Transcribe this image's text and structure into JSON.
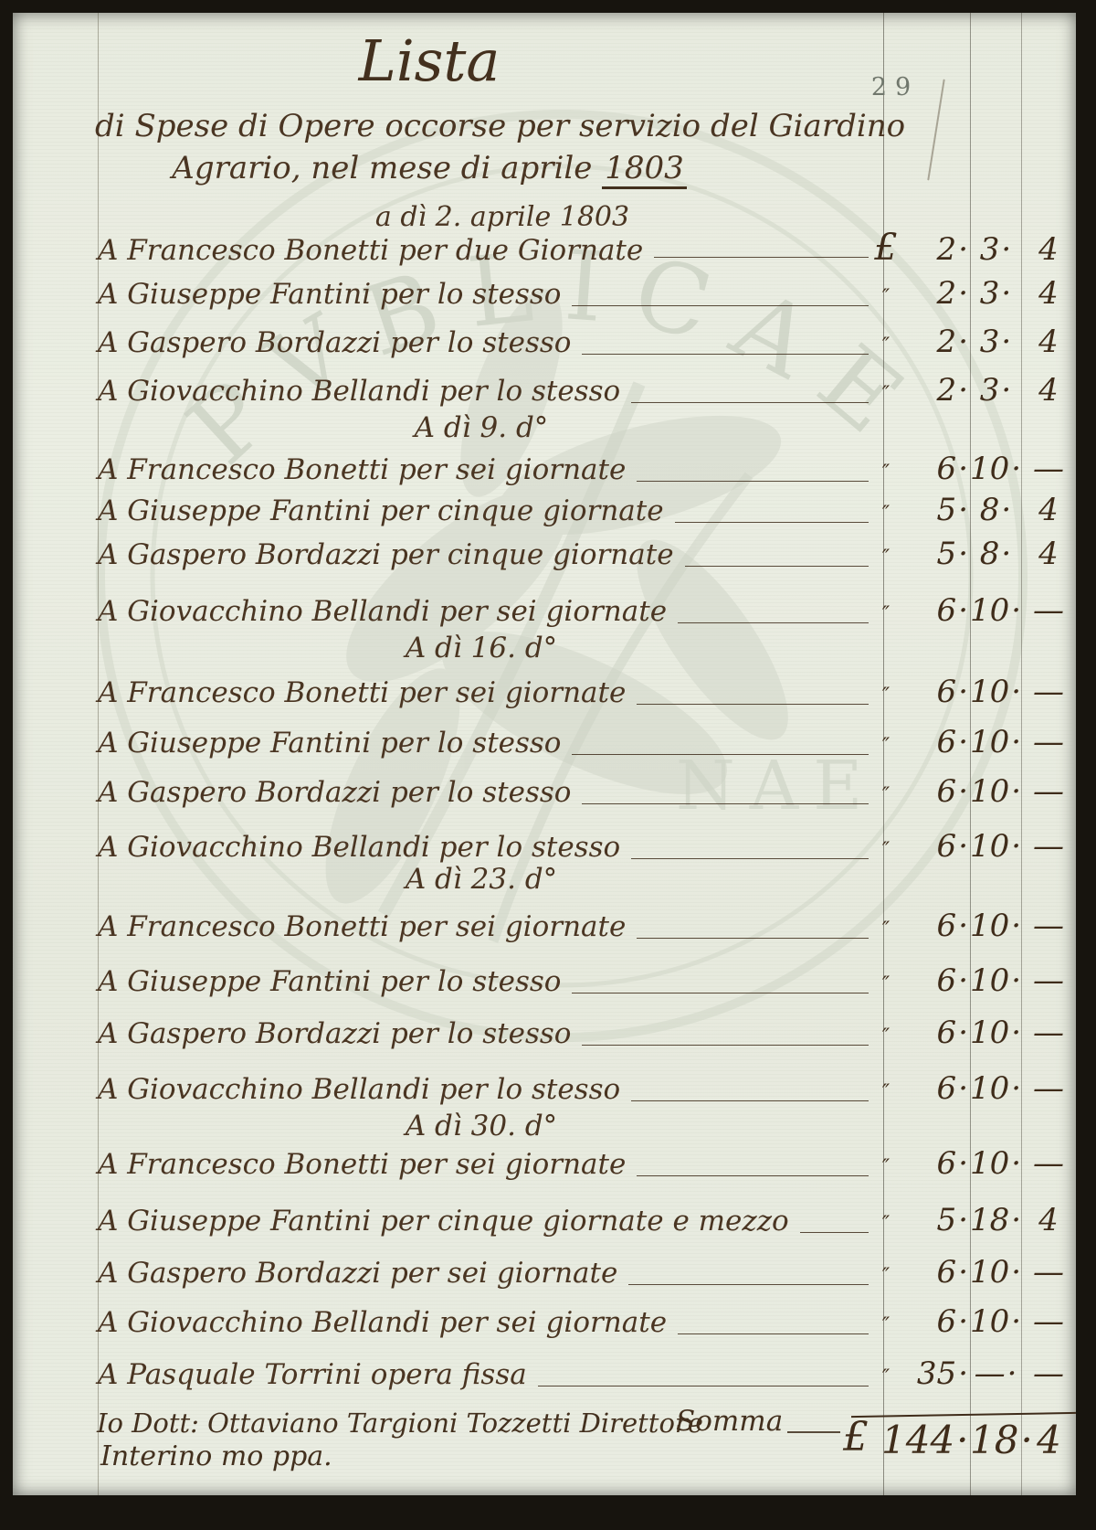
{
  "document": {
    "page_number": "29",
    "title": "Lista",
    "subtitle_line1": "di Spese di Opere occorse per servizio del Giardino",
    "subtitle_line2_pre": "Agrario, nel mese di aprile ",
    "subtitle_line2_year": "1803",
    "date_heading": "a dì 2. aprile 1803",
    "currency_symbol": "£"
  },
  "sections": [
    {
      "heading": "",
      "entries": [
        {
          "text": "A Francesco Bonetti per due Giornate",
          "mark": "£",
          "lire": "2",
          "soldi": "3",
          "denari": "4"
        },
        {
          "text": "A Giuseppe Fantini per lo stesso",
          "mark": "″",
          "lire": "2",
          "soldi": "3",
          "denari": "4"
        },
        {
          "text": "A Gaspero Bordazzi per lo stesso",
          "mark": "″",
          "lire": "2",
          "soldi": "3",
          "denari": "4"
        },
        {
          "text": "A Giovacchino Bellandi per lo stesso",
          "mark": "″",
          "lire": "2",
          "soldi": "3",
          "denari": "4"
        }
      ]
    },
    {
      "heading": "A dì 9. d°",
      "entries": [
        {
          "text": "A Francesco Bonetti per sei giornate",
          "mark": "″",
          "lire": "6",
          "soldi": "10",
          "denari": "—"
        },
        {
          "text": "A Giuseppe Fantini per cinque giornate",
          "mark": "″",
          "lire": "5",
          "soldi": "8",
          "denari": "4"
        },
        {
          "text": "A Gaspero Bordazzi per cinque giornate",
          "mark": "″",
          "lire": "5",
          "soldi": "8",
          "denari": "4"
        },
        {
          "text": "A Giovacchino Bellandi per sei giornate",
          "mark": "″",
          "lire": "6",
          "soldi": "10",
          "denari": "—"
        }
      ]
    },
    {
      "heading": "A dì 16. d°",
      "entries": [
        {
          "text": "A Francesco Bonetti per sei giornate",
          "mark": "″",
          "lire": "6",
          "soldi": "10",
          "denari": "—"
        },
        {
          "text": "A Giuseppe Fantini per lo stesso",
          "mark": "″",
          "lire": "6",
          "soldi": "10",
          "denari": "—"
        },
        {
          "text": "A Gaspero Bordazzi per lo stesso",
          "mark": "″",
          "lire": "6",
          "soldi": "10",
          "denari": "—"
        },
        {
          "text": "A Giovacchino Bellandi per lo stesso",
          "mark": "″",
          "lire": "6",
          "soldi": "10",
          "denari": "—"
        }
      ]
    },
    {
      "heading": "A dì 23. d°",
      "entries": [
        {
          "text": "A Francesco Bonetti per sei giornate",
          "mark": "″",
          "lire": "6",
          "soldi": "10",
          "denari": "—"
        },
        {
          "text": "A Giuseppe Fantini per lo stesso",
          "mark": "″",
          "lire": "6",
          "soldi": "10",
          "denari": "—"
        },
        {
          "text": "A Gaspero Bordazzi per lo stesso",
          "mark": "″",
          "lire": "6",
          "soldi": "10",
          "denari": "—"
        },
        {
          "text": "A Giovacchino Bellandi per lo stesso",
          "mark": "″",
          "lire": "6",
          "soldi": "10",
          "denari": "—"
        }
      ]
    },
    {
      "heading": "A dì 30. d°",
      "entries": [
        {
          "text": "A Francesco Bonetti per sei giornate",
          "mark": "″",
          "lire": "6",
          "soldi": "10",
          "denari": "—"
        },
        {
          "text": "A Giuseppe Fantini per cinque giornate e mezzo",
          "mark": "″",
          "lire": "5",
          "soldi": "18",
          "denari": "4"
        },
        {
          "text": "A Gaspero Bordazzi per sei giornate",
          "mark": "″",
          "lire": "6",
          "soldi": "10",
          "denari": "—"
        },
        {
          "text": "A Giovacchino Bellandi per sei giornate",
          "mark": "″",
          "lire": "6",
          "soldi": "10",
          "denari": "—"
        },
        {
          "text": "A Pasquale Torrini opera fissa",
          "mark": "″",
          "lire": "35",
          "soldi": "—",
          "denari": "—"
        }
      ]
    }
  ],
  "totals": {
    "somma_label": "Somma",
    "currency": "£",
    "lire": "144",
    "soldi": "18",
    "denari": "4"
  },
  "signature": {
    "line1": "Io Dott: Ottaviano Targioni Tozzetti Direttore",
    "line2": "Interino mo ppa."
  },
  "colors": {
    "paper": "#e9ece1",
    "ink": "#4a3522",
    "watermark": "#ccd2c4",
    "rule_line": "#6b6557"
  }
}
